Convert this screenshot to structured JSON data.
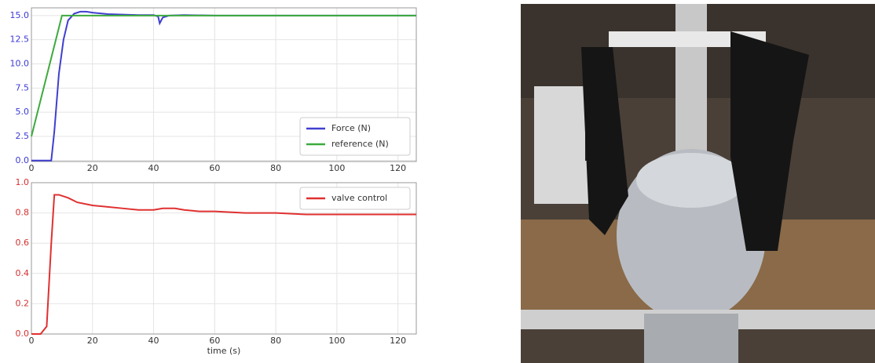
{
  "chart_data": [
    {
      "type": "line",
      "xlim": [
        0,
        126
      ],
      "xticks": [
        0,
        20,
        40,
        60,
        80,
        100,
        120
      ],
      "ylim": [
        -0.1,
        15.8
      ],
      "yticks": [
        {
          "value": 0,
          "label": "0.0"
        },
        {
          "value": 2.5,
          "label": "2.5"
        },
        {
          "value": 5,
          "label": "5.0"
        },
        {
          "value": 7.5,
          "label": "7.5"
        },
        {
          "value": 10,
          "label": "10.0"
        },
        {
          "value": 12.5,
          "label": "12.5"
        },
        {
          "value": 15,
          "label": "15.0"
        }
      ],
      "ytick_color": "#3b3bd6",
      "legend": "lower right",
      "series": [
        {
          "name": "Force (N)",
          "color": "#3f3fcf",
          "x": [
            0,
            6.5,
            7.5,
            9,
            10.5,
            12,
            14,
            16,
            18,
            20,
            25,
            30,
            35,
            40,
            41.5,
            42,
            43,
            45,
            50,
            60,
            70,
            80,
            90,
            100,
            110,
            126
          ],
          "values": [
            0,
            0,
            3,
            9,
            12.5,
            14.5,
            15.2,
            15.4,
            15.4,
            15.3,
            15.15,
            15.1,
            15.05,
            15.05,
            14.9,
            14.2,
            14.8,
            15.0,
            15.05,
            15.0,
            15.0,
            15.0,
            15.0,
            15.0,
            15.0,
            15.0
          ]
        },
        {
          "name": "reference (N)",
          "color": "#3daa3d",
          "x": [
            0,
            10,
            126
          ],
          "values": [
            2.5,
            15,
            15
          ]
        }
      ]
    },
    {
      "type": "line",
      "xlim": [
        0,
        126
      ],
      "xticks": [
        0,
        20,
        40,
        60,
        80,
        100,
        120
      ],
      "xlabel": "time (s)",
      "ylim": [
        0,
        1
      ],
      "yticks": [
        {
          "value": 0,
          "label": "0.0"
        },
        {
          "value": 0.2,
          "label": "0.2"
        },
        {
          "value": 0.4,
          "label": "0.4"
        },
        {
          "value": 0.6,
          "label": "0.6"
        },
        {
          "value": 0.8,
          "label": "0.8"
        },
        {
          "value": 1,
          "label": "1.0"
        }
      ],
      "ytick_color": "#d63030",
      "legend": "upper right",
      "series": [
        {
          "name": "valve control",
          "color": "#e03030",
          "x": [
            0,
            3,
            5,
            6.5,
            7.5,
            9,
            12,
            15,
            20,
            25,
            30,
            35,
            40,
            43,
            47,
            50,
            55,
            60,
            70,
            80,
            90,
            100,
            110,
            126
          ],
          "values": [
            0,
            0,
            0.05,
            0.6,
            0.92,
            0.92,
            0.9,
            0.87,
            0.85,
            0.84,
            0.83,
            0.82,
            0.82,
            0.83,
            0.83,
            0.82,
            0.81,
            0.81,
            0.8,
            0.8,
            0.79,
            0.79,
            0.79,
            0.79
          ]
        }
      ]
    }
  ]
}
